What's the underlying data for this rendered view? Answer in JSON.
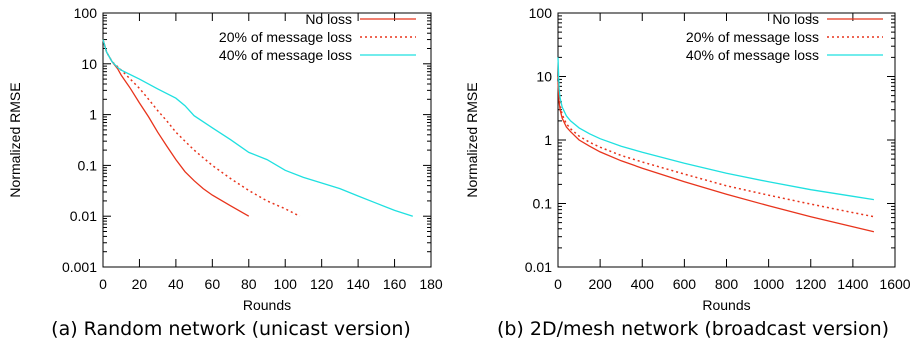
{
  "chart_data": [
    {
      "type": "line",
      "caption": "(a) Random network (unicast version)",
      "xlabel": "Rounds",
      "ylabel": "Normalized RMSE",
      "xlim": [
        0,
        180
      ],
      "ylim": [
        0.001,
        100
      ],
      "yscale": "log",
      "xticks": [
        "0",
        "20",
        "40",
        "60",
        "80",
        "100",
        "120",
        "140",
        "160",
        "180"
      ],
      "yticks": [
        "0.001",
        "0.01",
        "0.1",
        "1",
        "10",
        "100"
      ],
      "legend_position": "top-right",
      "grid": false,
      "series": [
        {
          "name": "No loss",
          "color": "#e8341c",
          "style": "solid",
          "x": [
            0,
            2,
            5,
            8,
            10,
            15,
            20,
            25,
            30,
            35,
            40,
            45,
            50,
            55,
            60,
            70,
            80
          ],
          "y": [
            30,
            17,
            11,
            8,
            6,
            3.3,
            1.7,
            0.9,
            0.45,
            0.24,
            0.13,
            0.075,
            0.05,
            0.035,
            0.026,
            0.016,
            0.01
          ]
        },
        {
          "name": "20% of message loss",
          "color": "#e8341c",
          "style": "dotted",
          "x": [
            0,
            2,
            5,
            10,
            15,
            20,
            25,
            30,
            35,
            40,
            45,
            50,
            60,
            70,
            80,
            90,
            100,
            108
          ],
          "y": [
            30,
            17,
            11,
            7.5,
            5,
            3.3,
            2,
            1.2,
            0.75,
            0.45,
            0.3,
            0.2,
            0.1,
            0.055,
            0.032,
            0.02,
            0.014,
            0.01
          ]
        },
        {
          "name": "40% of message loss",
          "color": "#1fe0e0",
          "style": "solid",
          "x": [
            0,
            2,
            5,
            8,
            10,
            20,
            30,
            40,
            45,
            50,
            60,
            70,
            80,
            90,
            100,
            110,
            120,
            130,
            140,
            150,
            160,
            170
          ],
          "y": [
            30,
            17,
            11,
            8.5,
            7.5,
            5,
            3.2,
            2.1,
            1.5,
            0.95,
            0.55,
            0.32,
            0.18,
            0.13,
            0.08,
            0.058,
            0.045,
            0.035,
            0.025,
            0.018,
            0.013,
            0.01
          ]
        }
      ]
    },
    {
      "type": "line",
      "caption": "(b) 2D/mesh network (broadcast version)",
      "xlabel": "Rounds",
      "ylabel": "Normalized RMSE",
      "xlim": [
        0,
        1600
      ],
      "ylim": [
        0.01,
        100
      ],
      "yscale": "log",
      "xticks": [
        "0",
        "200",
        "400",
        "600",
        "800",
        "1000",
        "1200",
        "1400",
        "1600"
      ],
      "yticks": [
        "0.01",
        "0.1",
        "1",
        "10",
        "100"
      ],
      "legend_position": "top-right",
      "grid": false,
      "series": [
        {
          "name": "No loss",
          "color": "#e8341c",
          "style": "solid",
          "x": [
            0,
            5,
            10,
            20,
            40,
            60,
            100,
            150,
            200,
            300,
            400,
            600,
            800,
            1000,
            1200,
            1400,
            1500
          ],
          "y": [
            8,
            4,
            3,
            2.2,
            1.6,
            1.35,
            1.0,
            0.8,
            0.65,
            0.47,
            0.36,
            0.22,
            0.14,
            0.092,
            0.062,
            0.043,
            0.036
          ]
        },
        {
          "name": "20% of message loss",
          "color": "#e8341c",
          "style": "dotted",
          "x": [
            0,
            5,
            10,
            20,
            40,
            60,
            100,
            150,
            200,
            300,
            400,
            600,
            800,
            1000,
            1200,
            1400,
            1500
          ],
          "y": [
            10,
            4.8,
            3.5,
            2.5,
            1.8,
            1.5,
            1.15,
            0.92,
            0.77,
            0.57,
            0.45,
            0.29,
            0.19,
            0.135,
            0.098,
            0.072,
            0.062
          ]
        },
        {
          "name": "40% of message loss",
          "color": "#1fe0e0",
          "style": "solid",
          "x": [
            0,
            5,
            10,
            20,
            40,
            60,
            100,
            150,
            200,
            300,
            400,
            600,
            800,
            1000,
            1200,
            1400,
            1500
          ],
          "y": [
            20,
            6.5,
            4.6,
            3.3,
            2.4,
            2.0,
            1.55,
            1.25,
            1.05,
            0.8,
            0.64,
            0.43,
            0.3,
            0.22,
            0.165,
            0.13,
            0.115
          ]
        }
      ]
    }
  ]
}
